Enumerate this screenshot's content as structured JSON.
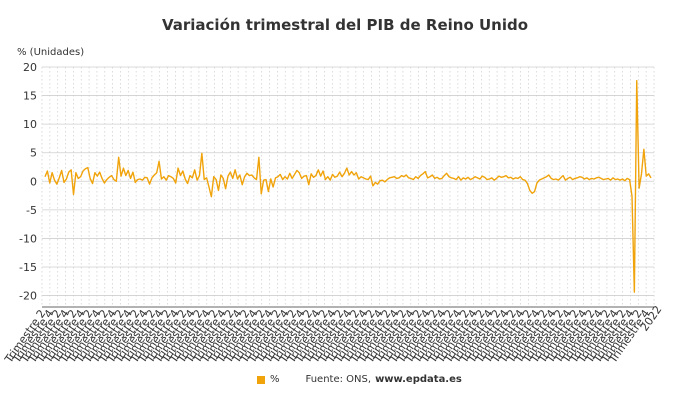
{
  "chart_data": {
    "type": "line",
    "title": "Variación trimestral del PIB de Reino Unido",
    "ylabel": "% (Unidades)",
    "ylim": [
      -22,
      20
    ],
    "yticks": [
      20,
      15,
      10,
      5,
      0,
      -5,
      -10,
      -15,
      -20
    ],
    "grid": true,
    "legend": "bottom",
    "x_tick_labels": [
      "Trimestre 2",
      "Trimestre 4",
      "Trimestre 2",
      "Trimestre 4",
      "Trimestre 2",
      "Trimestre 4",
      "Trimestre 2",
      "Trimestre 4",
      "Trimestre 2",
      "Trimestre 4",
      "Trimestre 2",
      "Trimestre 4",
      "Trimestre 2",
      "Trimestre 4",
      "Trimestre 2",
      "Trimestre 4",
      "Trimestre 2",
      "Trimestre 4",
      "Trimestre 2",
      "Trimestre 4",
      "Trimestre 2",
      "Trimestre 4",
      "Trimestre 2",
      "Trimestre 4",
      "Trimestre 2",
      "Trimestre 4",
      "Trimestre 2",
      "Trimestre 4",
      "Trimestre 2",
      "Trimestre 4",
      "Trimestre 2",
      "Trimestre 4",
      "Trimestre 2",
      "Trimestre 4",
      "Trimestre 2",
      "Trimestre 4",
      "Trimestre 2",
      "Trimestre 4",
      "Trimestre 2",
      "Trimestre 4",
      "Trimestre 2",
      "Trimestre 4",
      "Trimestre 2",
      "Trimestre 4",
      "Trimestre 2",
      "Trimestre 4",
      "Trimestre 2",
      "Trimestre 4",
      "Trimestre 2",
      "Trimestre 4",
      "Trimestre 2",
      "Trimestre 4",
      "Trimestre 2",
      "Trimestre 4",
      "Trimestre 2",
      "Trimestre 4",
      "Trimestre 2",
      "Trimestre 4",
      "Trimestre 2",
      "Trimestre 4",
      "Trimestre 2",
      "Trimestre 4",
      "Trimestre 2",
      "Trimestre 4",
      "Trimestre 2",
      "Trimestre 4",
      "Trimestre 2",
      "Trimestre 4",
      "Trimestre 2",
      "Trimestre 4",
      "Trimestre 2",
      "Trimestre 4",
      "Trimestre 2",
      "Trimestre 4",
      "Trimestre 2",
      "Trimestre 4",
      "Trimestre 2",
      "Trimestre 4"
    ],
    "last_label": "2022",
    "series": [
      {
        "name": "%",
        "color": "#f0a30a",
        "values": [
          0.8,
          1.8,
          -0.3,
          1.5,
          0.2,
          -0.5,
          0.6,
          1.9,
          -0.2,
          0.4,
          1.6,
          2.0,
          -2.3,
          1.5,
          0.5,
          0.8,
          1.8,
          2.2,
          2.4,
          0.5,
          -0.4,
          1.5,
          0.9,
          1.6,
          0.5,
          -0.3,
          0.3,
          0.7,
          1.0,
          0.3,
          0.0,
          4.2,
          0.9,
          2.3,
          1.0,
          1.9,
          0.5,
          1.6,
          -0.2,
          0.3,
          0.4,
          0.2,
          0.7,
          0.6,
          -0.5,
          0.6,
          1.1,
          1.5,
          3.5,
          0.4,
          0.8,
          0.2,
          1.0,
          0.8,
          0.5,
          -0.3,
          2.3,
          1.0,
          1.8,
          0.4,
          -0.4,
          1.0,
          0.6,
          2.0,
          0.2,
          1.0,
          4.9,
          0.3,
          0.6,
          -1.0,
          -2.7,
          0.8,
          0.3,
          -1.6,
          1.1,
          0.5,
          -1.3,
          0.9,
          1.6,
          0.5,
          2.0,
          0.4,
          1.1,
          -0.6,
          0.8,
          1.4,
          1.0,
          1.1,
          0.6,
          0.3,
          4.2,
          -2.2,
          0.2,
          0.3,
          -1.8,
          0.4,
          -1.0,
          0.6,
          0.8,
          1.2,
          0.3,
          0.8,
          0.4,
          1.4,
          0.5,
          1.2,
          1.9,
          1.5,
          0.5,
          0.9,
          1.0,
          -0.6,
          1.3,
          0.7,
          1.0,
          2.0,
          0.9,
          1.8,
          0.3,
          0.8,
          0.2,
          1.2,
          0.7,
          0.9,
          1.6,
          0.8,
          1.4,
          2.3,
          1.1,
          1.7,
          1.1,
          1.5,
          0.4,
          0.8,
          0.6,
          0.4,
          0.3,
          0.9,
          -0.8,
          -0.2,
          -0.5,
          0.1,
          0.2,
          -0.1,
          0.3,
          0.6,
          0.7,
          0.8,
          0.5,
          0.6,
          1.0,
          0.8,
          1.1,
          0.6,
          0.5,
          0.3,
          0.8,
          0.5,
          1.0,
          1.3,
          1.7,
          0.6,
          0.8,
          1.1,
          0.5,
          0.7,
          0.4,
          0.5,
          1.0,
          1.4,
          0.8,
          0.6,
          0.5,
          0.3,
          0.8,
          0.2,
          0.6,
          0.4,
          0.7,
          0.3,
          0.5,
          0.8,
          0.6,
          0.4,
          0.9,
          0.7,
          0.3,
          0.4,
          0.6,
          0.2,
          0.5,
          0.9,
          0.7,
          0.8,
          1.0,
          0.6,
          0.7,
          0.4,
          0.6,
          0.5,
          0.8,
          0.3,
          0.2,
          -0.4,
          -1.6,
          -2.1,
          -1.8,
          -0.3,
          0.2,
          0.4,
          0.6,
          0.8,
          1.1,
          0.5,
          0.3,
          0.4,
          0.2,
          0.6,
          1.0,
          0.2,
          0.5,
          0.7,
          0.3,
          0.5,
          0.6,
          0.8,
          0.7,
          0.4,
          0.6,
          0.3,
          0.5,
          0.4,
          0.6,
          0.7,
          0.5,
          0.3,
          0.4,
          0.5,
          0.2,
          0.6,
          0.3,
          0.4,
          0.2,
          0.4,
          0.1,
          0.5,
          0.3,
          -2.6,
          -19.4,
          17.6,
          -1.2,
          1.3,
          5.6,
          0.9,
          1.3,
          0.6
        ]
      }
    ]
  },
  "source_label": "Fuente: ONS,",
  "source_value": "www.epdata.es"
}
